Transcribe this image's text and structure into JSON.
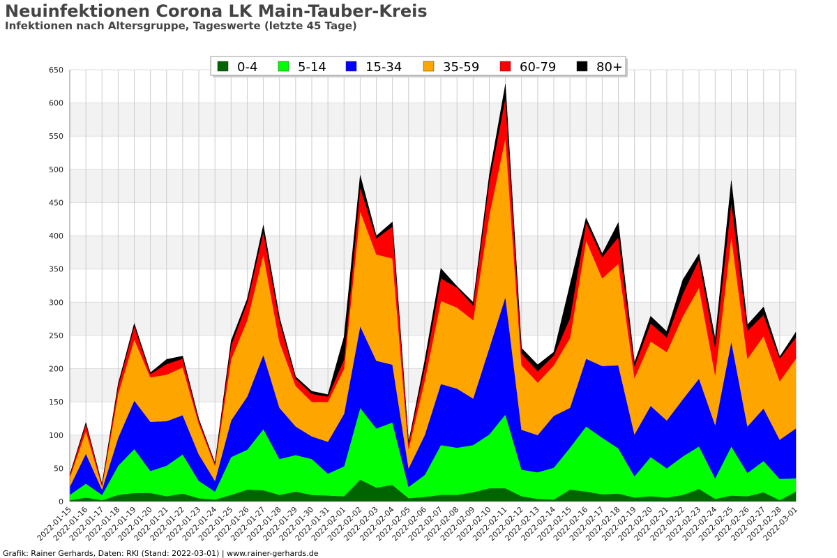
{
  "header": {
    "title": "Neuinfektionen Corona LK Main-Tauber-Kreis",
    "subtitle": "Infektionen nach Altersgruppe, Tageswerte (letzte 45 Tage)"
  },
  "footer": {
    "credit": "Grafik: Rainer Gerhards, Daten: RKI (Stand: 2022-03-01) | www.rainer-gerhards.de"
  },
  "chart_data": {
    "type": "area",
    "stacked": true,
    "title": "Neuinfektionen Corona LK Main-Tauber-Kreis",
    "subtitle": "Infektionen nach Altersgruppe, Tageswerte (letzte 45 Tage)",
    "xlabel": "",
    "ylabel": "",
    "ylim": [
      0,
      650
    ],
    "yticks": [
      0,
      50,
      100,
      150,
      200,
      250,
      300,
      350,
      400,
      450,
      500,
      550,
      600,
      650
    ],
    "grid": true,
    "legend_position": "top-center",
    "x": [
      "2022-01-15",
      "2022-01-16",
      "2022-01-17",
      "2022-01-18",
      "2022-01-19",
      "2022-01-20",
      "2022-01-21",
      "2022-01-22",
      "2022-01-23",
      "2022-01-24",
      "2022-01-25",
      "2022-01-26",
      "2022-01-27",
      "2022-01-28",
      "2022-01-29",
      "2022-01-30",
      "2022-01-31",
      "2022-02-01",
      "2022-02-02",
      "2022-02-03",
      "2022-02-04",
      "2022-02-05",
      "2022-02-06",
      "2022-02-07",
      "2022-02-08",
      "2022-02-09",
      "2022-02-10",
      "2022-02-11",
      "2022-02-12",
      "2022-02-13",
      "2022-02-14",
      "2022-02-15",
      "2022-02-16",
      "2022-02-17",
      "2022-02-18",
      "2022-02-19",
      "2022-02-20",
      "2022-02-21",
      "2022-02-22",
      "2022-02-23",
      "2022-02-24",
      "2022-02-25",
      "2022-02-26",
      "2022-02-27",
      "2022-02-28",
      "2022-03-01"
    ],
    "series": [
      {
        "name": "0-4",
        "color": "#006400",
        "values": [
          2,
          6,
          2,
          10,
          13,
          13,
          8,
          12,
          5,
          3,
          10,
          18,
          17,
          10,
          15,
          10,
          9,
          8,
          33,
          21,
          25,
          5,
          7,
          10,
          10,
          14,
          20,
          20,
          8,
          4,
          3,
          18,
          15,
          11,
          12,
          6,
          8,
          6,
          10,
          19,
          4,
          9,
          8,
          14,
          2,
          15
        ]
      },
      {
        "name": "5-14",
        "color": "#00ff00",
        "values": [
          8,
          21,
          8,
          44,
          66,
          33,
          46,
          59,
          26,
          12,
          57,
          60,
          92,
          54,
          55,
          54,
          33,
          45,
          108,
          89,
          94,
          17,
          33,
          75,
          71,
          71,
          81,
          111,
          40,
          40,
          48,
          63,
          98,
          85,
          68,
          32,
          59,
          44,
          58,
          64,
          31,
          74,
          35,
          47,
          32,
          20
        ]
      },
      {
        "name": "15-34",
        "color": "#0000ff",
        "values": [
          12,
          45,
          8,
          42,
          73,
          74,
          67,
          59,
          40,
          16,
          55,
          80,
          112,
          77,
          43,
          34,
          48,
          79,
          123,
          102,
          87,
          28,
          60,
          92,
          89,
          70,
          130,
          177,
          60,
          56,
          78,
          60,
          102,
          108,
          125,
          63,
          77,
          72,
          86,
          102,
          80,
          158,
          70,
          79,
          59,
          75
        ]
      },
      {
        "name": "35-59",
        "color": "#ffa500",
        "values": [
          14,
          34,
          5,
          66,
          92,
          67,
          70,
          72,
          46,
          23,
          92,
          115,
          151,
          99,
          61,
          52,
          60,
          68,
          173,
          160,
          160,
          29,
          82,
          125,
          122,
          118,
          200,
          240,
          97,
          79,
          76,
          105,
          178,
          132,
          153,
          85,
          97,
          103,
          125,
          137,
          75,
          158,
          102,
          109,
          88,
          105
        ]
      },
      {
        "name": "60-79",
        "color": "#ff0000",
        "values": [
          3,
          11,
          2,
          12,
          20,
          5,
          16,
          13,
          5,
          3,
          21,
          27,
          34,
          31,
          11,
          12,
          8,
          14,
          36,
          24,
          48,
          9,
          20,
          34,
          30,
          22,
          50,
          60,
          18,
          17,
          15,
          30,
          27,
          32,
          40,
          18,
          27,
          22,
          34,
          42,
          42,
          52,
          42,
          32,
          34,
          32
        ]
      },
      {
        "name": "80+",
        "color": "#000000",
        "values": [
          1,
          2,
          1,
          3,
          4,
          2,
          7,
          4,
          2,
          1,
          7,
          5,
          10,
          6,
          3,
          4,
          3,
          34,
          18,
          4,
          7,
          1,
          10,
          15,
          2,
          5,
          10,
          20,
          8,
          10,
          5,
          50,
          7,
          5,
          22,
          5,
          11,
          9,
          21,
          9,
          13,
          32,
          9,
          12,
          3,
          8
        ]
      }
    ]
  }
}
